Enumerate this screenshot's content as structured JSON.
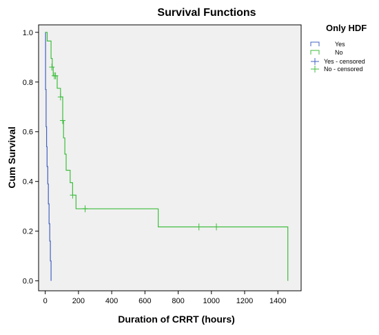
{
  "chart_data": {
    "type": "line",
    "title": "Survival Functions",
    "xlabel": "Duration of CRRT (hours)",
    "ylabel": "Cum Survival",
    "xlim": [
      -40,
      1540
    ],
    "ylim": [
      -0.04,
      1.03
    ],
    "xticks": [
      "0",
      "200",
      "400",
      "600",
      "800",
      "1000",
      "1200",
      "1400"
    ],
    "xtick_values": [
      0,
      200,
      400,
      600,
      800,
      1000,
      1200,
      1400
    ],
    "yticks": [
      "0.0",
      "0.2",
      "0.4",
      "0.6",
      "0.8",
      "1.0"
    ],
    "ytick_values": [
      0.0,
      0.2,
      0.4,
      0.6,
      0.8,
      1.0
    ],
    "grid": false,
    "legend": {
      "title": "Only HDF",
      "placement": "right",
      "entries": [
        "Yes",
        "No",
        "Yes - censored",
        "No - censored"
      ]
    },
    "series": [
      {
        "name": "Yes",
        "color": "#4060c0",
        "steps": [
          [
            0,
            1.0
          ],
          [
            2,
            0.77
          ],
          [
            5,
            0.62
          ],
          [
            8,
            0.54
          ],
          [
            11,
            0.46
          ],
          [
            15,
            0.39
          ],
          [
            19,
            0.31
          ],
          [
            23,
            0.23
          ],
          [
            27,
            0.16
          ],
          [
            31,
            0.08
          ],
          [
            35,
            0.0
          ]
        ]
      },
      {
        "name": "No",
        "color": "#3dbd3d",
        "steps": [
          [
            0,
            1.0
          ],
          [
            12,
            0.965
          ],
          [
            35,
            0.895
          ],
          [
            42,
            0.86
          ],
          [
            48,
            0.825
          ],
          [
            60,
            0.825
          ],
          [
            72,
            0.775
          ],
          [
            92,
            0.74
          ],
          [
            105,
            0.645
          ],
          [
            110,
            0.575
          ],
          [
            118,
            0.51
          ],
          [
            126,
            0.445
          ],
          [
            150,
            0.395
          ],
          [
            165,
            0.345
          ],
          [
            185,
            0.29
          ],
          [
            680,
            0.217
          ],
          [
            1460,
            0.0
          ]
        ],
        "censored": [
          [
            40,
            0.86
          ],
          [
            55,
            0.825
          ],
          [
            62,
            0.825
          ],
          [
            92,
            0.74
          ],
          [
            105,
            0.645
          ],
          [
            165,
            0.345
          ],
          [
            240,
            0.29
          ],
          [
            925,
            0.217
          ],
          [
            1030,
            0.217
          ]
        ]
      }
    ]
  }
}
